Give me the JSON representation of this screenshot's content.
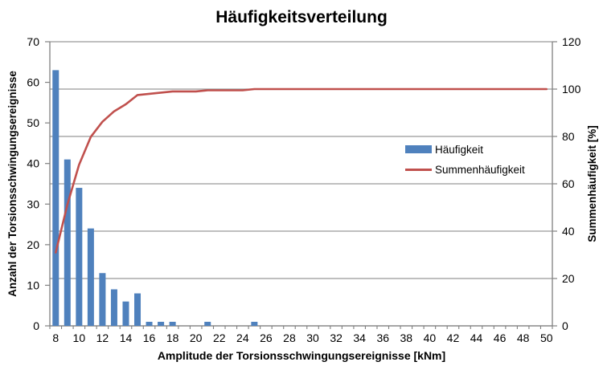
{
  "chart_data": {
    "type": "combo-bar-line",
    "title": "Häufigkeitsverteilung",
    "x_axis": {
      "label": "Amplitude der Torsionsschwingungsereignisse [kNm]",
      "min": 8,
      "max": 50,
      "tick_labels": [
        8,
        10,
        12,
        14,
        16,
        18,
        20,
        22,
        24,
        26,
        28,
        30,
        32,
        34,
        36,
        38,
        40,
        42,
        44,
        46,
        48,
        50
      ],
      "minor_tick_step": 1
    },
    "y_axis_left": {
      "label": "Anzahl der Torsionsschwingungsereignisse",
      "min": 0,
      "max": 70,
      "ticks": [
        0,
        10,
        20,
        30,
        40,
        50,
        60,
        70
      ]
    },
    "y_axis_right": {
      "label": "Summenhäufigkeit [%]",
      "min": 0,
      "max": 120,
      "ticks": [
        0,
        20,
        40,
        60,
        80,
        100,
        120
      ]
    },
    "gridlines": {
      "axis": "right",
      "at": [
        0,
        20,
        40,
        60,
        80,
        100,
        120
      ]
    },
    "legend_position": "middle-right",
    "series": [
      {
        "name": "Häufigkeit",
        "type": "bar",
        "axis": "left",
        "color": "#4f81bd",
        "x": [
          8,
          9,
          10,
          11,
          12,
          13,
          14,
          15,
          16,
          17,
          18,
          21,
          25
        ],
        "values": [
          63,
          41,
          34,
          24,
          13,
          9,
          6,
          8,
          1,
          1,
          1,
          1,
          1
        ]
      },
      {
        "name": "Summenhäufigkeit",
        "type": "line",
        "axis": "right",
        "color": "#c0504d",
        "x": [
          8,
          9,
          10,
          11,
          12,
          13,
          14,
          15,
          16,
          17,
          18,
          19,
          20,
          21,
          22,
          23,
          24,
          25,
          26,
          27,
          28,
          29,
          30,
          31,
          32,
          33,
          34,
          35,
          36,
          37,
          38,
          39,
          40,
          41,
          42,
          43,
          44,
          45,
          46,
          47,
          48,
          49,
          50
        ],
        "values": [
          31.0,
          51.2,
          68.0,
          79.8,
          86.2,
          90.6,
          93.6,
          97.5,
          98.0,
          98.5,
          99.0,
          99.0,
          99.0,
          99.5,
          99.5,
          99.5,
          99.5,
          100,
          100,
          100,
          100,
          100,
          100,
          100,
          100,
          100,
          100,
          100,
          100,
          100,
          100,
          100,
          100,
          100,
          100,
          100,
          100,
          100,
          100,
          100,
          100,
          100,
          100
        ]
      }
    ],
    "colors": {
      "bar": "#4f81bd",
      "line": "#c0504d",
      "gridline": "#999999",
      "axis": "#808080",
      "text": "#000000"
    }
  }
}
